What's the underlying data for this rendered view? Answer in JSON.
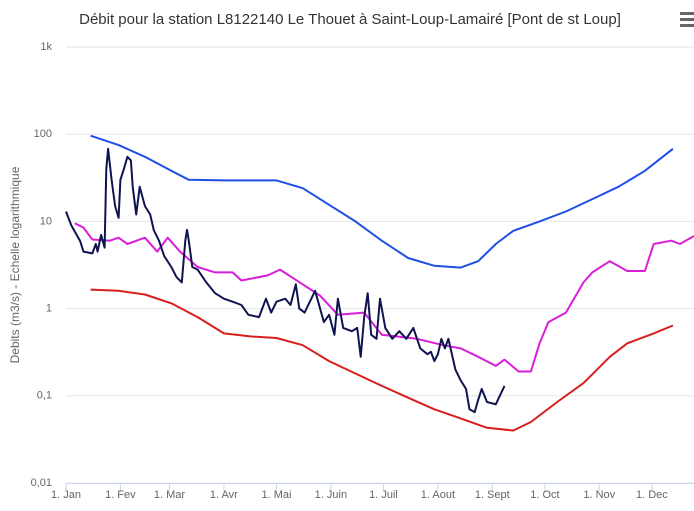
{
  "chart_data": {
    "type": "line",
    "title": "Débit pour la station L8122140 Le Thouet à Saint-Loup-Lamairé [Pont de st Loup]",
    "y_label": "Debits (m3/s) - Echelle logarithmique",
    "log_y": true,
    "grid": true,
    "xlim": [
      0,
      358
    ],
    "xticks": [
      {
        "value": 0,
        "label": "1. Jan"
      },
      {
        "value": 31,
        "label": "1. Fev"
      },
      {
        "value": 59,
        "label": "1. Mar"
      },
      {
        "value": 90,
        "label": "1. Avr"
      },
      {
        "value": 120,
        "label": "1. Mai"
      },
      {
        "value": 151,
        "label": "1. Juin"
      },
      {
        "value": 181,
        "label": "1. Juil"
      },
      {
        "value": 212,
        "label": "1. Aout"
      },
      {
        "value": 243,
        "label": "1. Sept"
      },
      {
        "value": 273,
        "label": "1. Oct"
      },
      {
        "value": 304,
        "label": "1. Nov"
      },
      {
        "value": 334,
        "label": "1. Dec"
      }
    ],
    "ylim": [
      0.01,
      1000
    ],
    "yticks": [
      {
        "value": 0.01,
        "label": "0,01"
      },
      {
        "value": 0.1,
        "label": "0,1"
      },
      1,
      10,
      100,
      {
        "value": 1000,
        "label": "1k"
      }
    ],
    "series": [
      {
        "color": "#1f4fe6",
        "x": [
          14,
          30,
          45,
          60,
          70,
          90,
          120,
          135,
          150,
          165,
          180,
          195,
          210,
          225,
          235,
          245,
          255,
          270,
          285,
          300,
          315,
          330,
          346
        ],
        "values": [
          96,
          75,
          55,
          38,
          30,
          29.5,
          29.5,
          24,
          15.5,
          10,
          6,
          3.8,
          3.1,
          2.95,
          3.5,
          5.5,
          7.8,
          10,
          13,
          18,
          25,
          38,
          68
        ]
      },
      {
        "color": "#d91e1e",
        "x": [
          14,
          30,
          45,
          60,
          75,
          90,
          105,
          120,
          135,
          150,
          165,
          180,
          195,
          210,
          225,
          240,
          255,
          265,
          280,
          295,
          310,
          320,
          335,
          346
        ],
        "values": [
          1.65,
          1.6,
          1.45,
          1.15,
          0.8,
          0.52,
          0.48,
          0.46,
          0.38,
          0.25,
          0.18,
          0.13,
          0.095,
          0.07,
          0.055,
          0.043,
          0.04,
          0.05,
          0.085,
          0.14,
          0.28,
          0.4,
          0.52,
          0.64
        ]
      },
      {
        "color": "#d91ed9",
        "x": [
          5,
          10,
          15,
          25,
          30,
          35,
          45,
          52,
          58,
          65,
          75,
          85,
          95,
          100,
          115,
          122,
          130,
          145,
          155,
          170,
          180,
          200,
          215,
          225,
          235,
          245,
          250,
          258,
          265,
          270,
          275,
          285,
          295,
          300,
          310,
          320,
          330,
          335,
          345,
          350,
          358
        ],
        "values": [
          9.5,
          8.5,
          6.2,
          6,
          6.5,
          5.5,
          6.5,
          4.5,
          6.5,
          4.5,
          3,
          2.6,
          2.6,
          2.1,
          2.4,
          2.8,
          2.2,
          1.4,
          0.85,
          0.9,
          0.5,
          0.45,
          0.38,
          0.35,
          0.28,
          0.22,
          0.26,
          0.19,
          0.19,
          0.4,
          0.7,
          0.9,
          2,
          2.6,
          3.5,
          2.7,
          2.7,
          5.5,
          6,
          5.5,
          6.8
        ]
      },
      {
        "color": "#0f1450",
        "x": [
          0,
          3,
          8,
          10,
          15,
          17,
          18,
          20,
          22,
          23,
          24,
          26,
          28,
          30,
          31,
          33,
          35,
          37,
          38,
          40,
          42,
          45,
          48,
          50,
          53,
          56,
          60,
          63,
          66,
          68,
          69,
          70,
          72,
          75,
          80,
          85,
          90,
          95,
          100,
          104,
          110,
          114,
          117,
          120,
          125,
          128,
          131,
          133,
          136,
          142,
          147,
          150,
          153,
          155,
          158,
          163,
          166,
          168,
          170,
          172,
          174,
          177,
          179,
          182,
          186,
          190,
          194,
          198,
          202,
          206,
          208,
          210,
          212,
          214,
          216,
          218,
          220,
          222,
          225,
          228,
          230,
          233,
          235,
          237,
          240,
          245,
          250
        ],
        "values": [
          13,
          9,
          6,
          4.5,
          4.3,
          5.5,
          4.5,
          7,
          5,
          40,
          68,
          30,
          15,
          11,
          30,
          40,
          55,
          50,
          25,
          12,
          25,
          15,
          12,
          8,
          6,
          4,
          3,
          2.3,
          2,
          6,
          8,
          6,
          3,
          2.8,
          2,
          1.5,
          1.3,
          1.2,
          1.1,
          0.85,
          0.8,
          1.3,
          0.9,
          1.2,
          1.3,
          1.1,
          1.9,
          1,
          0.9,
          1.6,
          0.7,
          0.85,
          0.5,
          1.3,
          0.6,
          0.55,
          0.6,
          0.28,
          0.8,
          1.5,
          0.5,
          0.45,
          1.3,
          0.6,
          0.45,
          0.55,
          0.45,
          0.6,
          0.35,
          0.3,
          0.32,
          0.25,
          0.3,
          0.45,
          0.35,
          0.45,
          0.3,
          0.2,
          0.15,
          0.12,
          0.07,
          0.065,
          0.09,
          0.12,
          0.085,
          0.08,
          0.13
        ]
      }
    ]
  }
}
